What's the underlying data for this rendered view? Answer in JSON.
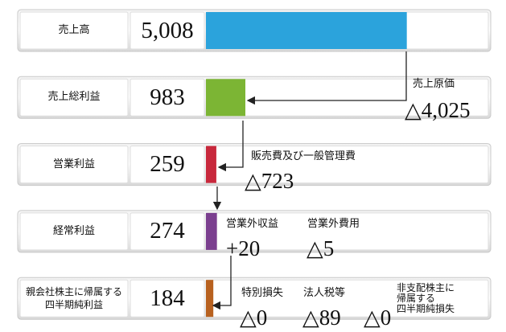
{
  "chart_data": {
    "type": "bar",
    "categories": [
      "売上高",
      "売上総利益",
      "営業利益",
      "経常利益",
      "親会社株主に帰属する\n四半期純利益"
    ],
    "values": [
      5008,
      983,
      259,
      274,
      184
    ],
    "value_labels": [
      "5,008",
      "983",
      "259",
      "274",
      "184"
    ],
    "colors": [
      "#2ba3dc",
      "#7cb534",
      "#c8283c",
      "#7b3f8f",
      "#b8611f"
    ],
    "xlim": [
      0,
      7100
    ],
    "annotations": [
      {
        "name": "売上原価",
        "value_label": "△4,025"
      },
      {
        "name": "販売費及び一般管理費",
        "value_label": "△723"
      },
      {
        "name": "営業外収益",
        "value_label": "+20"
      },
      {
        "name": "営業外費用",
        "value_label": "△5"
      },
      {
        "name": "特別損失",
        "value_label": "△0"
      },
      {
        "name": "法人税等",
        "value_label": "△89"
      },
      {
        "name": "非支配株主に\n帰属する\n四半期純損失",
        "value_label": "△0"
      }
    ]
  }
}
